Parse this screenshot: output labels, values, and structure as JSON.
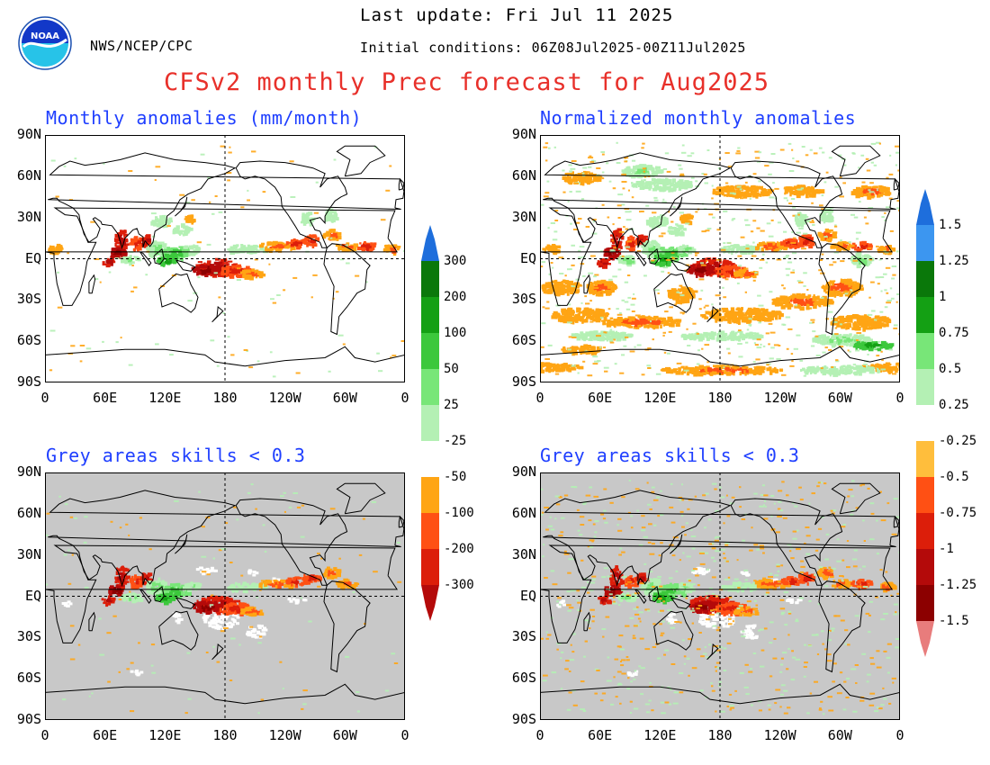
{
  "header": {
    "last_update": "Last update: Fri Jul 11 2025",
    "org": "NWS/NCEP/CPC",
    "initial_conditions": "Initial conditions: 06Z08Jul2025-00Z11Jul2025",
    "title": "CFSv2 monthly Prec forecast for Aug2025",
    "logo_text": "NOAA"
  },
  "panels": {
    "top_left_title": "Monthly anomalies (mm/month)",
    "top_right_title": "Normalized monthly anomalies",
    "bottom_left_title": "Grey areas skills < 0.3",
    "bottom_right_title": "Grey areas skills < 0.3"
  },
  "axes": {
    "lat_labels": [
      "90N",
      "60N",
      "30N",
      "EQ",
      "30S",
      "60S",
      "90S"
    ],
    "lon_labels": [
      "0",
      "60E",
      "120E",
      "180",
      "120W",
      "60W",
      "0"
    ]
  },
  "colorbar_left": {
    "labels": [
      "300",
      "200",
      "100",
      "50",
      "25",
      "-25",
      "-50",
      "-100",
      "-200",
      "-300"
    ]
  },
  "colorbar_right": {
    "labels": [
      "1.5",
      "1.25",
      "1",
      "0.75",
      "0.5",
      "0.25",
      "-0.25",
      "-0.5",
      "-0.75",
      "-1",
      "-1.25",
      "-1.5"
    ]
  },
  "colors": {
    "title_red": "#e8302a",
    "panel_title_blue": "#1f3fff",
    "grey_mask": "#c8c8c8",
    "wet": [
      "#b4f0b4",
      "#78e678",
      "#3cc83c",
      "#14a014",
      "#0a780a",
      "#1e6edc"
    ],
    "dry": [
      "#ffa514",
      "#ff5014",
      "#dc1e0a",
      "#b40a0a",
      "#8c0000",
      "#e87c7c"
    ]
  }
}
